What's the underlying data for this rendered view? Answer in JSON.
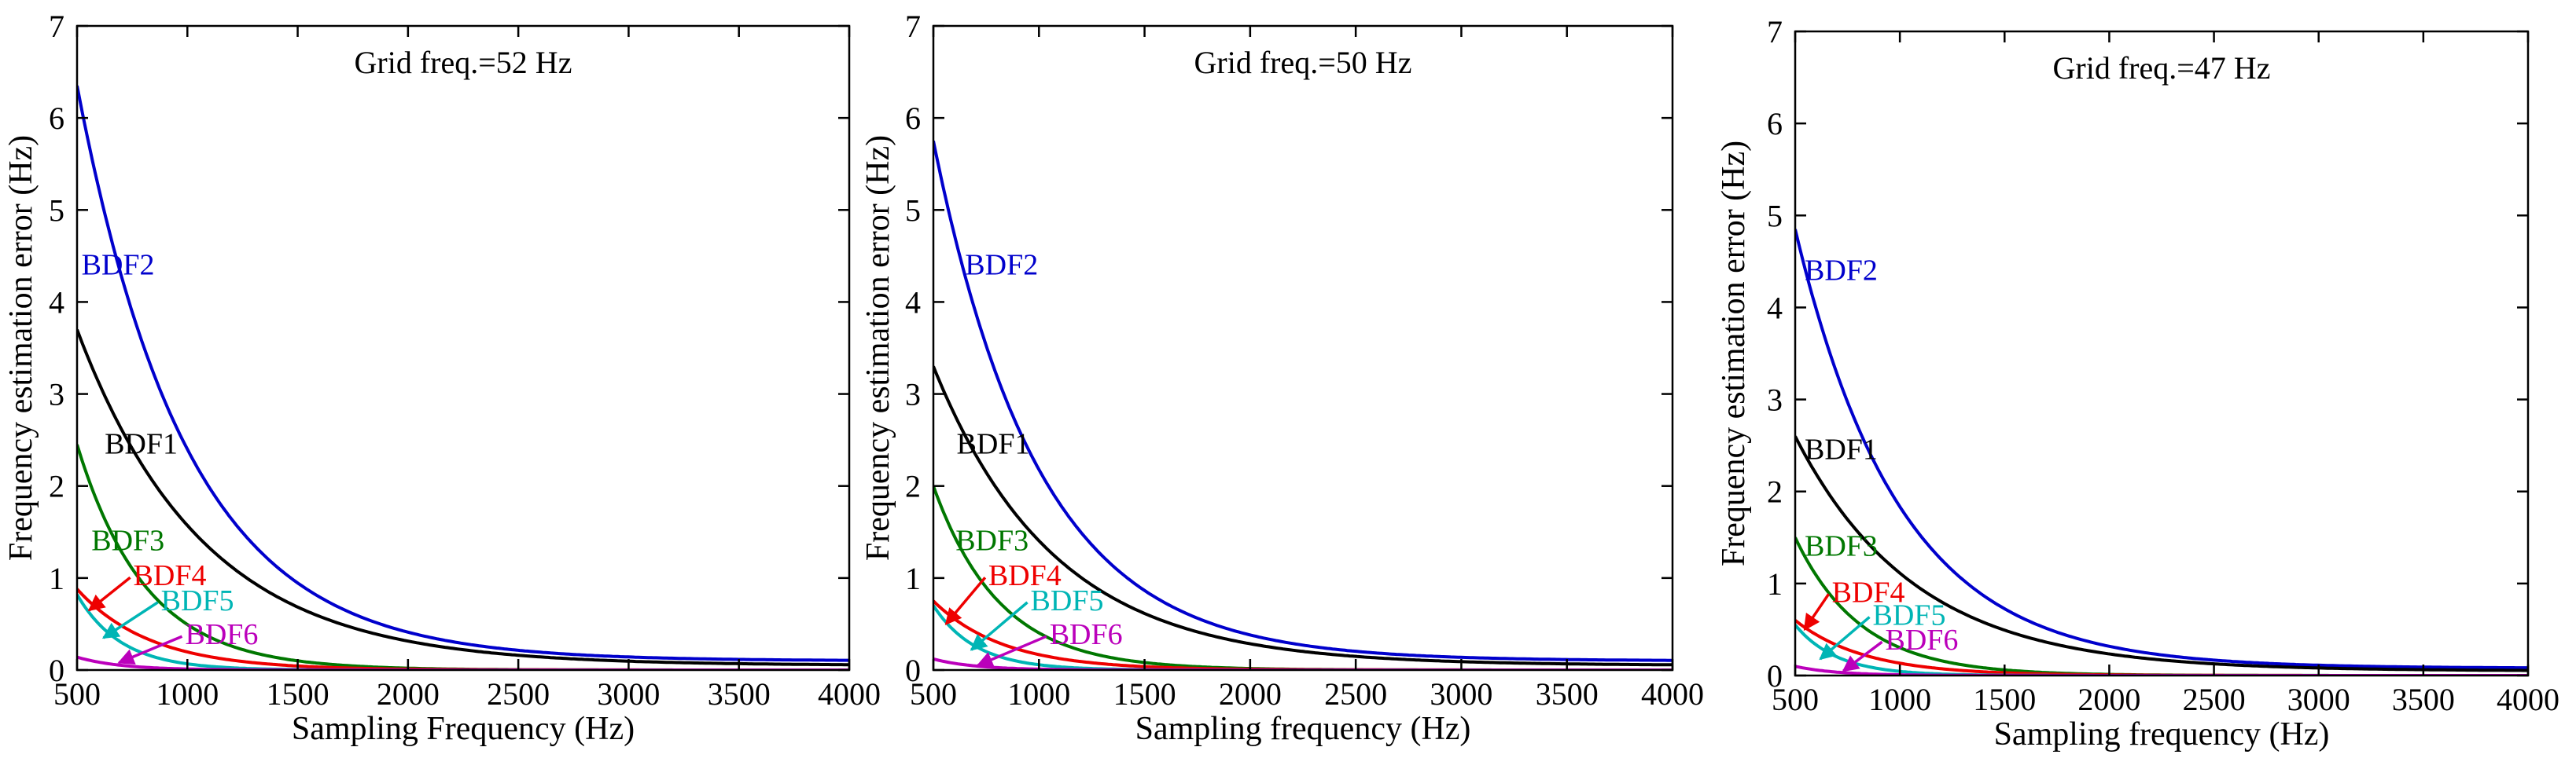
{
  "chart_data": [
    {
      "type": "line",
      "title": "Grid freq.=52 Hz",
      "xlabel": "Sampling Frequency (Hz)",
      "ylabel": "Frequency estimation error (Hz)",
      "xlim": [
        500,
        4000
      ],
      "ylim": [
        0,
        7
      ],
      "xticks": [
        "500",
        "1000",
        "1500",
        "2000",
        "2500",
        "3000",
        "3500",
        "4000"
      ],
      "yticks": [
        "0",
        "1",
        "2",
        "3",
        "4",
        "5",
        "6",
        "7"
      ],
      "series": [
        {
          "name": "BDF2",
          "color": "#0000cc",
          "start": 6.35,
          "decay": 2.0,
          "tail": 0.1,
          "label_at": [
            520,
            4.3
          ],
          "arrow_to": null
        },
        {
          "name": "BDF1",
          "color": "#000000",
          "start": 3.7,
          "decay": 1.75,
          "tail": 0.05,
          "label_at": [
            625,
            2.35
          ],
          "arrow_to": null
        },
        {
          "name": "BDF3",
          "color": "#007700",
          "start": 2.45,
          "decay": 3.2,
          "tail": 0.0,
          "label_at": [
            565,
            1.3
          ],
          "arrow_to": null
        },
        {
          "name": "BDF4",
          "color": "#ee0000",
          "start": 0.88,
          "decay": 3.0,
          "tail": 0.0,
          "label_at": [
            755,
            0.92
          ],
          "arrow_to": [
            555,
            0.65
          ]
        },
        {
          "name": "BDF5",
          "color": "#00b5b5",
          "start": 0.82,
          "decay": 5.0,
          "tail": 0.0,
          "label_at": [
            880,
            0.65
          ],
          "arrow_to": [
            620,
            0.35
          ]
        },
        {
          "name": "BDF6",
          "color": "#bb00bb",
          "start": 0.14,
          "decay": 5.0,
          "tail": 0.0,
          "label_at": [
            990,
            0.28
          ],
          "arrow_to": [
            690,
            0.08
          ]
        }
      ]
    },
    {
      "type": "line",
      "title": "Grid freq.=50 Hz",
      "xlabel": "Sampling frequency (Hz)",
      "ylabel": "Frequency estimation error (Hz)",
      "xlim": [
        500,
        4000
      ],
      "ylim": [
        0,
        7
      ],
      "xticks": [
        "500",
        "1000",
        "1500",
        "2000",
        "2500",
        "3000",
        "3500",
        "4000"
      ],
      "yticks": [
        "0",
        "1",
        "2",
        "3",
        "4",
        "5",
        "6",
        "7"
      ],
      "series": [
        {
          "name": "BDF2",
          "color": "#0000cc",
          "start": 5.75,
          "decay": 2.0,
          "tail": 0.1,
          "label_at": [
            650,
            4.3
          ],
          "arrow_to": null
        },
        {
          "name": "BDF1",
          "color": "#000000",
          "start": 3.3,
          "decay": 1.75,
          "tail": 0.05,
          "label_at": [
            610,
            2.35
          ],
          "arrow_to": null
        },
        {
          "name": "BDF3",
          "color": "#007700",
          "start": 2.0,
          "decay": 3.2,
          "tail": 0.0,
          "label_at": [
            605,
            1.3
          ],
          "arrow_to": null
        },
        {
          "name": "BDF4",
          "color": "#ee0000",
          "start": 0.75,
          "decay": 3.0,
          "tail": 0.0,
          "label_at": [
            760,
            0.92
          ],
          "arrow_to": [
            560,
            0.5
          ]
        },
        {
          "name": "BDF5",
          "color": "#00b5b5",
          "start": 0.7,
          "decay": 5.0,
          "tail": 0.0,
          "label_at": [
            960,
            0.65
          ],
          "arrow_to": [
            680,
            0.22
          ]
        },
        {
          "name": "BDF6",
          "color": "#bb00bb",
          "start": 0.12,
          "decay": 5.0,
          "tail": 0.0,
          "label_at": [
            1050,
            0.28
          ],
          "arrow_to": [
            710,
            0.05
          ]
        }
      ]
    },
    {
      "type": "line",
      "title": "Grid freq.=47 Hz",
      "xlabel": "Sampling frequency (Hz)",
      "ylabel": "Frequency estimation error (Hz)",
      "xlim": [
        500,
        4000
      ],
      "ylim": [
        0,
        7
      ],
      "xticks": [
        "500",
        "1000",
        "1500",
        "2000",
        "2500",
        "3000",
        "3500",
        "4000"
      ],
      "yticks": [
        "0",
        "1",
        "2",
        "3",
        "4",
        "5",
        "6",
        "7"
      ],
      "series": [
        {
          "name": "BDF2",
          "color": "#0000cc",
          "start": 4.85,
          "decay": 2.0,
          "tail": 0.08,
          "label_at": [
            545,
            4.3
          ],
          "arrow_to": null
        },
        {
          "name": "BDF1",
          "color": "#000000",
          "start": 2.6,
          "decay": 1.75,
          "tail": 0.05,
          "label_at": [
            545,
            2.35
          ],
          "arrow_to": null
        },
        {
          "name": "BDF3",
          "color": "#007700",
          "start": 1.5,
          "decay": 3.2,
          "tail": 0.0,
          "label_at": [
            545,
            1.3
          ],
          "arrow_to": null
        },
        {
          "name": "BDF4",
          "color": "#ee0000",
          "start": 0.6,
          "decay": 3.0,
          "tail": 0.0,
          "label_at": [
            675,
            0.8
          ],
          "arrow_to": [
            545,
            0.5
          ]
        },
        {
          "name": "BDF5",
          "color": "#00b5b5",
          "start": 0.55,
          "decay": 5.0,
          "tail": 0.0,
          "label_at": [
            870,
            0.55
          ],
          "arrow_to": [
            620,
            0.18
          ]
        },
        {
          "name": "BDF6",
          "color": "#bb00bb",
          "start": 0.1,
          "decay": 5.0,
          "tail": 0.0,
          "label_at": [
            930,
            0.28
          ],
          "arrow_to": [
            730,
            0.05
          ]
        }
      ]
    }
  ]
}
